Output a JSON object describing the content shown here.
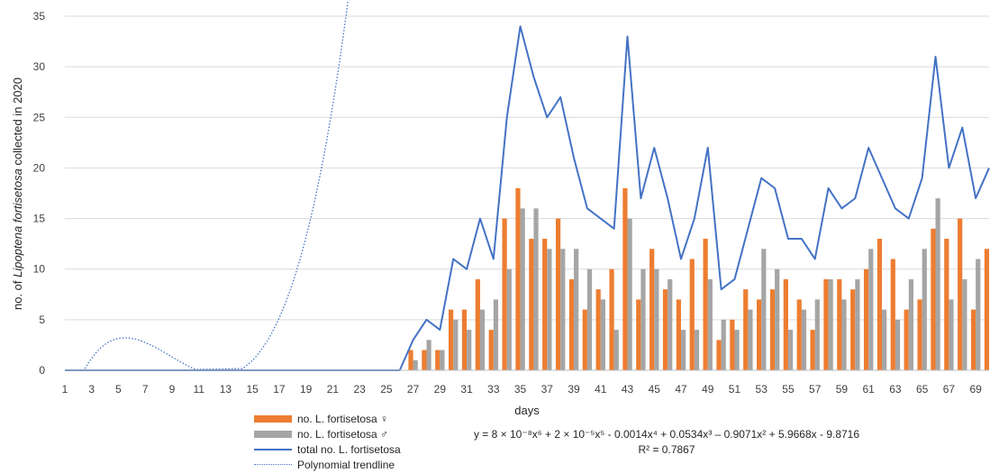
{
  "chart_data": {
    "type": "bar",
    "ylabel_prefix": "no. of ",
    "ylabel_italic": "Lipoptena fortisetosa",
    "ylabel_suffix": " collected in 2020",
    "xlabel": "days",
    "ylim": [
      0,
      35
    ],
    "yticks": [
      0,
      5,
      10,
      15,
      20,
      25,
      30,
      35
    ],
    "xlim": [
      1,
      70
    ],
    "xtick_labels": [
      1,
      3,
      5,
      7,
      9,
      11,
      13,
      15,
      17,
      19,
      21,
      23,
      25,
      27,
      29,
      31,
      33,
      35,
      37,
      39,
      41,
      43,
      45,
      47,
      49,
      51,
      53,
      55,
      57,
      59,
      61,
      63,
      65,
      67,
      69
    ],
    "grid": true,
    "series": [
      {
        "name": "no. L. fortisetosa ♀",
        "kind": "bar",
        "color": "#ED7D31",
        "x": [
          27,
          28,
          29,
          30,
          31,
          32,
          33,
          34,
          35,
          36,
          37,
          38,
          39,
          40,
          41,
          42,
          43,
          44,
          45,
          46,
          47,
          48,
          49,
          50,
          51,
          52,
          53,
          54,
          55,
          56,
          57,
          58,
          59,
          60,
          61,
          62,
          63,
          64,
          65,
          66,
          67,
          68,
          69,
          70
        ],
        "values": [
          2,
          2,
          2,
          6,
          6,
          9,
          4,
          15,
          18,
          13,
          13,
          15,
          9,
          6,
          8,
          10,
          18,
          7,
          12,
          8,
          7,
          11,
          13,
          3,
          5,
          8,
          7,
          8,
          9,
          7,
          4,
          9,
          9,
          8,
          10,
          13,
          11,
          6,
          7,
          14,
          13,
          15,
          6,
          12
        ]
      },
      {
        "name": "no. L. fortisetosa ♂",
        "kind": "bar",
        "color": "#A5A5A5",
        "x": [
          27,
          28,
          29,
          30,
          31,
          32,
          33,
          34,
          35,
          36,
          37,
          38,
          39,
          40,
          41,
          42,
          43,
          44,
          45,
          46,
          47,
          48,
          49,
          50,
          51,
          52,
          53,
          54,
          55,
          56,
          57,
          58,
          59,
          60,
          61,
          62,
          63,
          64,
          65,
          66,
          67,
          68,
          69
        ],
        "values": [
          1,
          3,
          2,
          5,
          4,
          6,
          7,
          10,
          16,
          16,
          12,
          12,
          12,
          10,
          7,
          4,
          15,
          10,
          10,
          9,
          4,
          4,
          9,
          5,
          4,
          6,
          12,
          10,
          4,
          6,
          7,
          9,
          7,
          9,
          12,
          6,
          5,
          9,
          12,
          17,
          7,
          9,
          11
        ]
      },
      {
        "name": "total no. L. fortisetosa",
        "kind": "line",
        "color": "#4472C4",
        "x": [
          1,
          26,
          27,
          28,
          29,
          30,
          31,
          32,
          33,
          34,
          35,
          36,
          37,
          38,
          39,
          40,
          41,
          42,
          43,
          44,
          45,
          46,
          47,
          48,
          49,
          50,
          51,
          52,
          53,
          54,
          55,
          56,
          57,
          58,
          59,
          60,
          61,
          62,
          63,
          64,
          65,
          66,
          67,
          68,
          69,
          70
        ],
        "values": [
          0,
          0,
          3,
          5,
          4,
          11,
          10,
          15,
          11,
          25,
          34,
          29,
          25,
          27,
          21,
          16,
          15,
          14,
          33,
          17,
          22,
          17,
          11,
          15,
          22,
          8,
          9,
          14,
          19,
          18,
          13,
          13,
          11,
          18,
          16,
          17,
          22,
          19,
          16,
          15,
          19,
          31,
          20,
          24,
          17,
          20
        ]
      },
      {
        "name": "Polynomial trendline",
        "kind": "trend",
        "color": "#4472C4",
        "coefficients": [
          -9.8716,
          5.9668,
          -0.9071,
          0.0534,
          -0.0014,
          2e-05,
          8e-08
        ]
      }
    ],
    "equation": "y = 8 × 10⁻⁸x⁶ + 2 × 10⁻⁵x⁵ - 0.0014x⁴ + 0.0534x³ – 0.9071x² + 5.9668x - 9.8716",
    "r_squared": "R² = 0.7867"
  }
}
